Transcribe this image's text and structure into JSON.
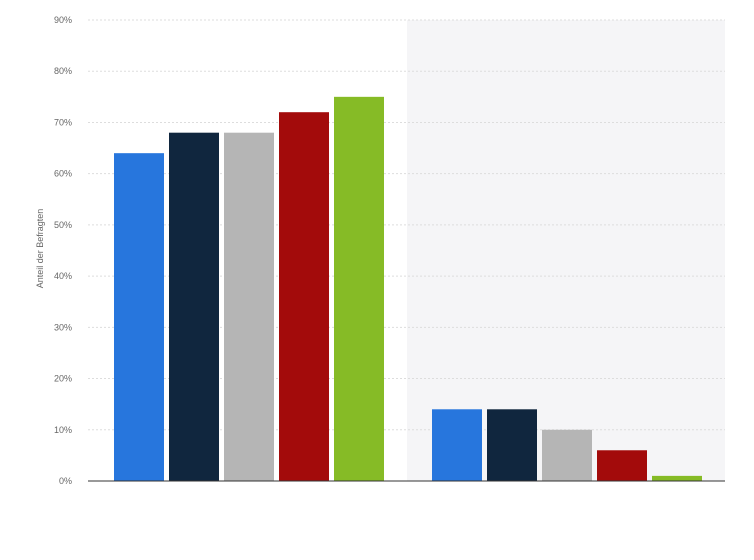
{
  "chart_data": {
    "type": "bar",
    "title": "",
    "xlabel": "",
    "ylabel": "Anteil der Befragten",
    "ylim": [
      0,
      90
    ],
    "y_ticks": [
      "0%",
      "10%",
      "20%",
      "30%",
      "40%",
      "50%",
      "60%",
      "70%",
      "80%",
      "90%"
    ],
    "y_tick_values": [
      0,
      10,
      20,
      30,
      40,
      50,
      60,
      70,
      80,
      90
    ],
    "categories": [
      "",
      ""
    ],
    "series": [
      {
        "color": "#2776dd",
        "values": [
          64,
          14
        ]
      },
      {
        "color": "#10263e",
        "values": [
          68,
          14
        ]
      },
      {
        "color": "#b5b5b5",
        "values": [
          68,
          10
        ]
      },
      {
        "color": "#a30b0b",
        "values": [
          72,
          6
        ]
      },
      {
        "color": "#86bb26",
        "values": [
          75,
          1
        ]
      }
    ],
    "grid": true,
    "shaded_group_background": "#f5f5f7",
    "gridline_color": "#dddddd"
  }
}
